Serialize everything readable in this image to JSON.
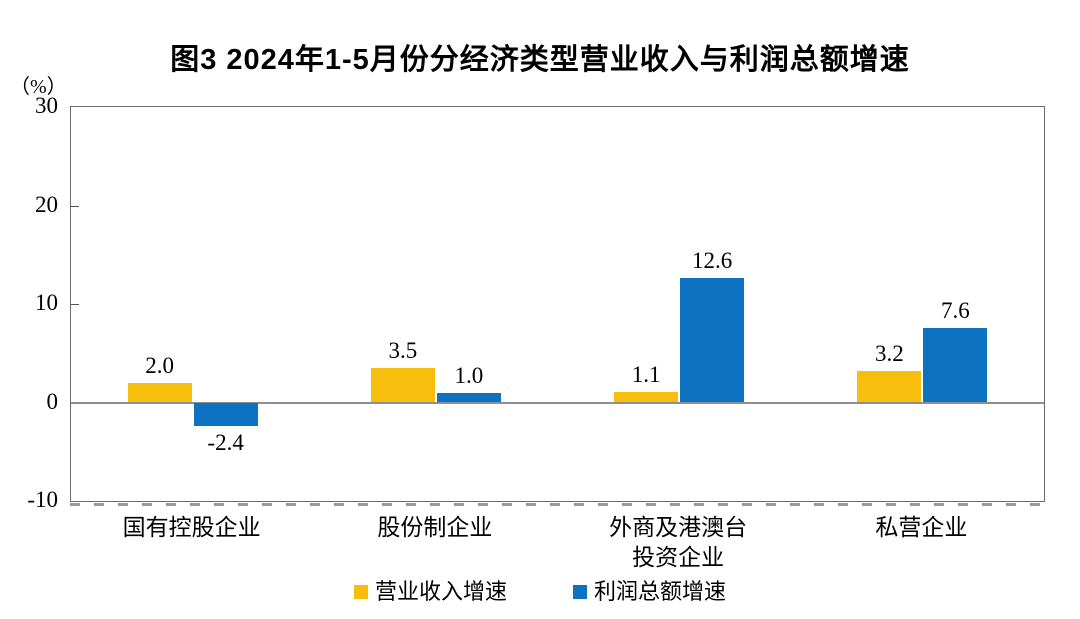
{
  "title": "图3  2024年1-5月份分经济类型营业收入与利润总额增速",
  "y_axis": {
    "unit_label": "（%）",
    "min": -10,
    "max": 30,
    "step": 10,
    "tick_values": [
      30,
      20,
      10,
      0,
      -10
    ],
    "tick_labels": [
      "30",
      "20",
      "10",
      "0",
      "-10"
    ]
  },
  "chart_data": {
    "type": "bar",
    "title": "图3  2024年1-5月份分经济类型营业收入与利润总额增速",
    "categories": [
      "国有控股企业",
      "股份制企业",
      "外商及港澳台\n投资企业",
      "私营企业"
    ],
    "series": [
      {
        "name": "营业收入增速",
        "color": "#F7BE0D",
        "values": [
          2.0,
          3.5,
          1.1,
          3.2
        ]
      },
      {
        "name": "利润总额增速",
        "color": "#0D72C2",
        "values": [
          -2.4,
          1.0,
          12.6,
          7.6
        ]
      }
    ],
    "value_labels": [
      "2.0",
      "3.5",
      "1.1",
      "3.2",
      "-2.4",
      "1.0",
      "12.6",
      "7.6"
    ],
    "ylabel": "（%）",
    "ylim": [
      -10,
      30
    ],
    "grid": false,
    "legend_position": "bottom"
  },
  "colors": {
    "axis_border": "#6b6b6b",
    "zero_line": "#8f8f8f",
    "text": "#000000",
    "background": "#ffffff"
  }
}
